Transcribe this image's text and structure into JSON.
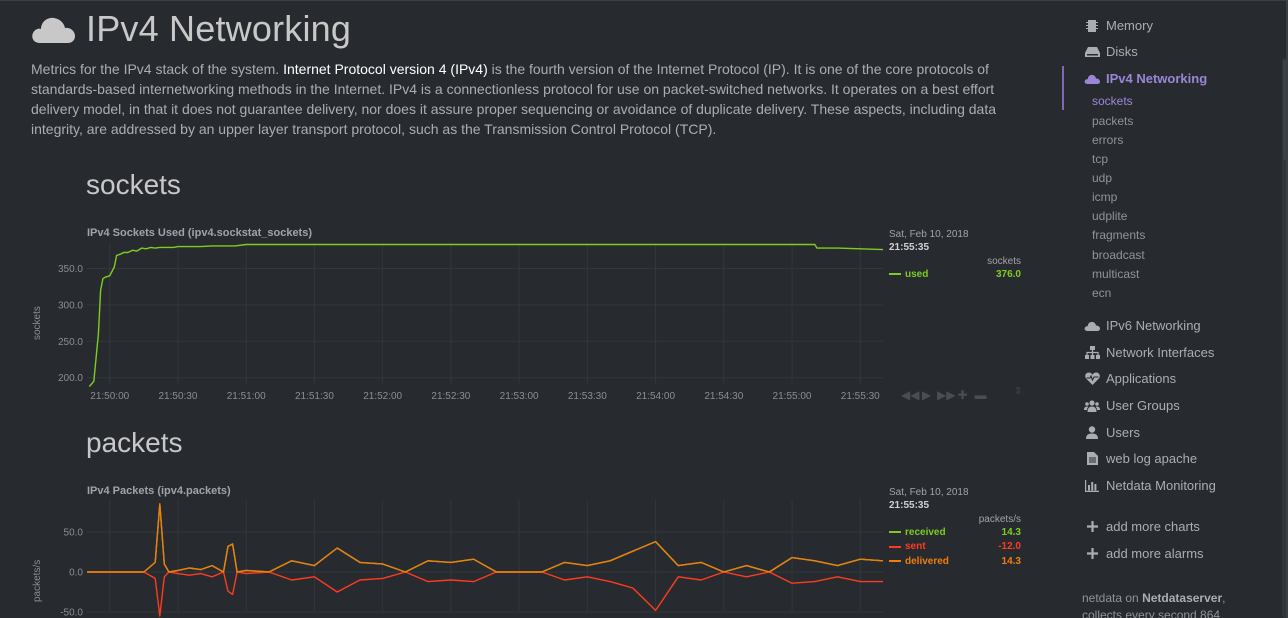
{
  "page": {
    "title": "IPv4 Networking",
    "intro_before": "Metrics for the IPv4 stack of the system. ",
    "intro_link": "Internet Protocol version 4 (IPv4)",
    "intro_after": " is the fourth version of the Internet Protocol (IP). It is one of the core protocols of standards-based internetworking methods in the Internet. IPv4 is a connectionless protocol for use on packet-switched networks. It operates on a best effort delivery model, in that it does not guarantee delivery, nor does it assure proper sequencing or avoidance of duplicate delivery. These aspects, including data integrity, are addressed by an upper layer transport protocol, such as the Transmission Control Protocol (TCP)."
  },
  "sections": {
    "sockets": {
      "title": "sockets",
      "chart_title": "IPv4 Sockets Used (ipv4.sockstat_sockets)",
      "ylabel": "sockets",
      "legend": {
        "date": "Sat, Feb 10, 2018",
        "time": "21:55:35",
        "units": "sockets",
        "rows": [
          {
            "name": "used",
            "value": "376.0",
            "color": "#7fcc20"
          }
        ]
      }
    },
    "packets": {
      "title": "packets",
      "chart_title": "IPv4 Packets (ipv4.packets)",
      "ylabel": "packets/s",
      "legend": {
        "date": "Sat, Feb 10, 2018",
        "time": "21:55:35",
        "units": "packets/s",
        "rows": [
          {
            "name": "received",
            "value": "14.3",
            "color": "#7fcc20"
          },
          {
            "name": "sent",
            "value": "-12.0",
            "color": "#ff3b1f"
          },
          {
            "name": "delivered",
            "value": "14.3",
            "color": "#ee7d0e"
          }
        ]
      }
    }
  },
  "toolbar": {
    "icons": [
      "rewind-icon",
      "play-icon",
      "forward-icon",
      "zoom-in-icon",
      "zoom-out-icon"
    ]
  },
  "sidebar": {
    "items": [
      {
        "label": "Memory",
        "icon": "memory-icon"
      },
      {
        "label": "Disks",
        "icon": "disks-icon"
      },
      {
        "label": "IPv4 Networking",
        "icon": "cloud-icon",
        "active": true
      },
      {
        "label": "IPv6 Networking",
        "icon": "cloud-icon"
      },
      {
        "label": "Network Interfaces",
        "icon": "sitemap-icon"
      },
      {
        "label": "Applications",
        "icon": "heartbeat-icon"
      },
      {
        "label": "User Groups",
        "icon": "users-icon"
      },
      {
        "label": "Users",
        "icon": "user-icon"
      },
      {
        "label": "web log apache",
        "icon": "file-icon"
      },
      {
        "label": "Netdata Monitoring",
        "icon": "bar-chart-icon"
      }
    ],
    "subitems": [
      "sockets",
      "packets",
      "errors",
      "tcp",
      "udp",
      "icmp",
      "udplite",
      "fragments",
      "broadcast",
      "multicast",
      "ecn"
    ],
    "actions": [
      {
        "label": "add more charts",
        "icon": "plus-icon"
      },
      {
        "label": "add more alarms",
        "icon": "plus-icon"
      }
    ],
    "footer_prefix": "netdata on ",
    "footer_host": "Netdataserver",
    "footer_suffix": ",",
    "footer_line2": "collects every second 864"
  },
  "colors": {
    "background": "#272b30",
    "accent": "#9b86d6",
    "used": "#7fcc20",
    "received": "#7fcc20",
    "sent": "#ff3b1f",
    "delivered": "#ee7d0e"
  },
  "chart_data": [
    {
      "type": "line",
      "title": "IPv4 Sockets Used (ipv4.sockstat_sockets)",
      "ylabel": "sockets",
      "x_ticks": [
        "21:50:00",
        "21:50:30",
        "21:51:00",
        "21:51:30",
        "21:52:00",
        "21:52:30",
        "21:53:00",
        "21:53:30",
        "21:54:00",
        "21:54:30",
        "21:55:00",
        "21:55:30"
      ],
      "y_ticks": [
        "200.0",
        "250.0",
        "300.0",
        "350.0"
      ],
      "ylim": [
        190,
        385
      ],
      "xlim_seconds": [
        -10,
        340
      ],
      "grid": true,
      "series": [
        {
          "name": "used",
          "x": [
            -9,
            -7,
            -5,
            -4,
            -3,
            -2,
            0,
            2,
            3,
            5,
            6,
            8,
            10,
            12,
            14,
            16,
            18,
            20,
            22,
            25,
            28,
            30,
            35,
            40,
            45,
            50,
            55,
            60,
            70,
            80,
            100,
            120,
            140,
            160,
            180,
            200,
            220,
            240,
            260,
            280,
            300,
            310,
            311,
            320,
            330,
            340
          ],
          "y": [
            188,
            195,
            260,
            320,
            336,
            338,
            340,
            352,
            368,
            370,
            372,
            372,
            375,
            374,
            378,
            377,
            379,
            378,
            379,
            379,
            379,
            380,
            380,
            380,
            381,
            381,
            381,
            383,
            383,
            383,
            383,
            383,
            383,
            383,
            383,
            383,
            383,
            383,
            383,
            383,
            383,
            383,
            378,
            378,
            377,
            376
          ]
        }
      ]
    },
    {
      "type": "line",
      "title": "IPv4 Packets (ipv4.packets)",
      "ylabel": "packets/s",
      "x_ticks": [],
      "y_ticks": [
        "-50.0",
        "0.0",
        "50.0"
      ],
      "ylim": [
        -50,
        90
      ],
      "xlim_seconds": [
        -10,
        340
      ],
      "grid": true,
      "series": [
        {
          "name": "received",
          "x": [
            -10,
            15,
            20,
            22,
            24,
            26,
            30,
            35,
            40,
            45,
            50,
            52,
            54,
            56,
            60,
            70,
            80,
            90,
            100,
            110,
            120,
            130,
            140,
            150,
            160,
            170,
            180,
            190,
            200,
            210,
            220,
            230,
            240,
            250,
            260,
            270,
            280,
            290,
            300,
            310,
            320,
            330,
            340
          ],
          "y": [
            0,
            0,
            12,
            85,
            10,
            0,
            2,
            5,
            3,
            8,
            0,
            32,
            35,
            0,
            2,
            0,
            14,
            8,
            30,
            12,
            10,
            0,
            14,
            12,
            16,
            0,
            0,
            0,
            12,
            8,
            14,
            26,
            38,
            8,
            12,
            0,
            8,
            0,
            18,
            14,
            8,
            16,
            14
          ]
        },
        {
          "name": "sent",
          "x": [
            -10,
            15,
            20,
            22,
            24,
            26,
            30,
            35,
            40,
            45,
            50,
            52,
            54,
            56,
            60,
            70,
            80,
            90,
            100,
            110,
            120,
            130,
            140,
            150,
            160,
            170,
            180,
            190,
            200,
            210,
            220,
            230,
            240,
            250,
            260,
            270,
            280,
            290,
            300,
            310,
            320,
            330,
            340
          ],
          "y": [
            0,
            0,
            -8,
            -55,
            -6,
            0,
            -2,
            -4,
            -2,
            -6,
            0,
            -24,
            -28,
            0,
            -2,
            0,
            -10,
            -6,
            -25,
            -10,
            -8,
            0,
            -12,
            -10,
            -12,
            0,
            0,
            0,
            -10,
            -6,
            -12,
            -20,
            -48,
            -6,
            -10,
            0,
            -6,
            0,
            -14,
            -12,
            -6,
            -12,
            -12
          ]
        },
        {
          "name": "delivered",
          "x": [
            -10,
            15,
            20,
            22,
            24,
            26,
            30,
            35,
            40,
            45,
            50,
            52,
            54,
            56,
            60,
            70,
            80,
            90,
            100,
            110,
            120,
            130,
            140,
            150,
            160,
            170,
            180,
            190,
            200,
            210,
            220,
            230,
            240,
            250,
            260,
            270,
            280,
            290,
            300,
            310,
            320,
            330,
            340
          ],
          "y": [
            0,
            0,
            12,
            85,
            10,
            0,
            2,
            5,
            3,
            8,
            0,
            32,
            35,
            0,
            2,
            0,
            14,
            8,
            30,
            12,
            10,
            0,
            14,
            12,
            16,
            0,
            0,
            0,
            12,
            8,
            14,
            26,
            38,
            8,
            12,
            0,
            8,
            0,
            18,
            14,
            8,
            16,
            14
          ]
        }
      ]
    }
  ]
}
